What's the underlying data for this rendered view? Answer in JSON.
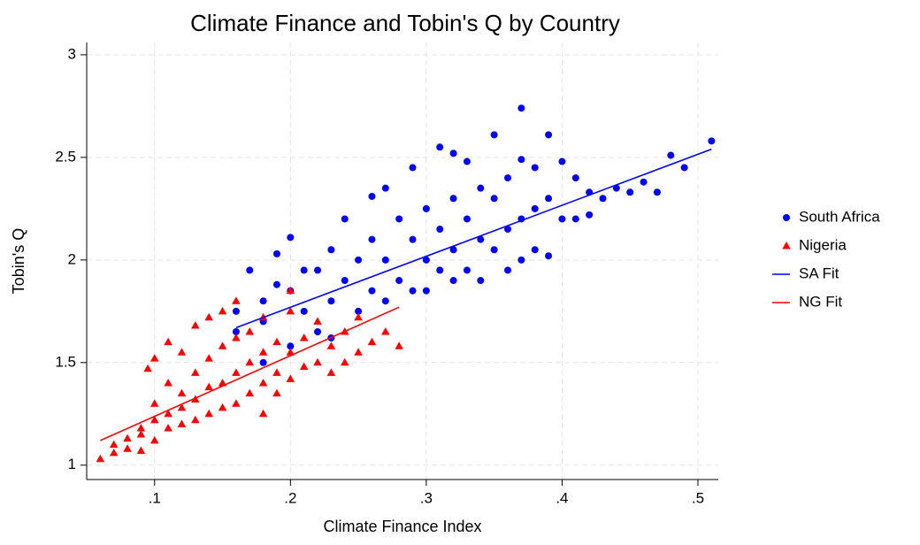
{
  "chart_data": {
    "type": "scatter",
    "title": "Climate Finance and Tobin's Q by Country",
    "xlabel": "Climate Finance Index",
    "ylabel": "Tobin's Q",
    "xlim": [
      0.05,
      0.515
    ],
    "ylim": [
      0.93,
      3.06
    ],
    "xticks": [
      {
        "value": 0.1,
        "label": ".1"
      },
      {
        "value": 0.2,
        "label": ".2"
      },
      {
        "value": 0.3,
        "label": ".3"
      },
      {
        "value": 0.4,
        "label": ".4"
      },
      {
        "value": 0.5,
        "label": ".5"
      }
    ],
    "yticks": [
      1,
      1.5,
      2,
      2.5,
      3
    ],
    "grid": true,
    "legend": "right",
    "series": [
      {
        "name": "South Africa",
        "color": "#0000ff",
        "marker": "circle",
        "x": [
          0.16,
          0.16,
          0.17,
          0.18,
          0.18,
          0.18,
          0.19,
          0.19,
          0.2,
          0.2,
          0.2,
          0.21,
          0.21,
          0.22,
          0.22,
          0.23,
          0.23,
          0.23,
          0.24,
          0.24,
          0.25,
          0.25,
          0.26,
          0.26,
          0.26,
          0.27,
          0.27,
          0.27,
          0.28,
          0.28,
          0.29,
          0.29,
          0.29,
          0.3,
          0.3,
          0.3,
          0.31,
          0.31,
          0.31,
          0.32,
          0.32,
          0.32,
          0.32,
          0.33,
          0.33,
          0.33,
          0.34,
          0.34,
          0.34,
          0.35,
          0.35,
          0.35,
          0.36,
          0.36,
          0.36,
          0.37,
          0.37,
          0.37,
          0.37,
          0.38,
          0.38,
          0.38,
          0.39,
          0.39,
          0.39,
          0.4,
          0.4,
          0.41,
          0.41,
          0.42,
          0.42,
          0.43,
          0.44,
          0.45,
          0.46,
          0.47,
          0.48,
          0.49,
          0.51
        ],
        "values": [
          1.75,
          1.65,
          1.95,
          1.7,
          1.8,
          1.5,
          2.03,
          1.88,
          2.11,
          1.85,
          1.58,
          1.95,
          1.75,
          1.95,
          1.65,
          2.05,
          1.8,
          1.62,
          2.2,
          1.9,
          2.0,
          1.75,
          2.31,
          2.1,
          1.85,
          2.35,
          2.0,
          1.8,
          2.2,
          1.9,
          2.45,
          2.1,
          1.85,
          2.25,
          2.0,
          1.85,
          2.55,
          2.15,
          1.95,
          2.52,
          2.3,
          2.05,
          1.9,
          2.48,
          2.2,
          1.95,
          2.35,
          2.1,
          1.9,
          2.61,
          2.3,
          2.05,
          2.4,
          2.15,
          1.95,
          2.74,
          2.49,
          2.2,
          2.0,
          2.45,
          2.25,
          2.05,
          2.61,
          2.3,
          2.02,
          2.48,
          2.2,
          2.4,
          2.2,
          2.33,
          2.22,
          2.3,
          2.35,
          2.33,
          2.38,
          2.33,
          2.51,
          2.45,
          2.58
        ]
      },
      {
        "name": "Nigeria",
        "color": "#ff0000",
        "marker": "triangle",
        "x": [
          0.06,
          0.07,
          0.07,
          0.08,
          0.08,
          0.09,
          0.09,
          0.09,
          0.095,
          0.1,
          0.1,
          0.1,
          0.1,
          0.11,
          0.11,
          0.11,
          0.11,
          0.12,
          0.12,
          0.12,
          0.12,
          0.13,
          0.13,
          0.13,
          0.13,
          0.14,
          0.14,
          0.14,
          0.14,
          0.15,
          0.15,
          0.15,
          0.15,
          0.16,
          0.16,
          0.16,
          0.16,
          0.17,
          0.17,
          0.17,
          0.18,
          0.18,
          0.18,
          0.19,
          0.19,
          0.2,
          0.2,
          0.2,
          0.2,
          0.21,
          0.21,
          0.22,
          0.22,
          0.23,
          0.23,
          0.24,
          0.24,
          0.25,
          0.25,
          0.26,
          0.27,
          0.28,
          0.18,
          0.19
        ],
        "values": [
          1.03,
          1.06,
          1.1,
          1.08,
          1.13,
          1.07,
          1.18,
          1.15,
          1.47,
          1.12,
          1.22,
          1.3,
          1.52,
          1.18,
          1.25,
          1.4,
          1.6,
          1.2,
          1.28,
          1.35,
          1.55,
          1.22,
          1.32,
          1.45,
          1.68,
          1.25,
          1.38,
          1.52,
          1.72,
          1.28,
          1.4,
          1.58,
          1.75,
          1.3,
          1.45,
          1.62,
          1.8,
          1.35,
          1.5,
          1.65,
          1.4,
          1.55,
          1.72,
          1.45,
          1.6,
          1.42,
          1.55,
          1.75,
          1.85,
          1.48,
          1.62,
          1.5,
          1.7,
          1.45,
          1.58,
          1.5,
          1.65,
          1.55,
          1.72,
          1.6,
          1.65,
          1.58,
          1.25,
          1.35
        ]
      },
      {
        "name": "SA Fit",
        "color": "#0000ff",
        "marker": "line",
        "x": [
          0.16,
          0.51
        ],
        "values": [
          1.67,
          2.54
        ]
      },
      {
        "name": "NG Fit",
        "color": "#ff0000",
        "marker": "line",
        "x": [
          0.06,
          0.28
        ],
        "values": [
          1.12,
          1.77
        ]
      }
    ]
  }
}
